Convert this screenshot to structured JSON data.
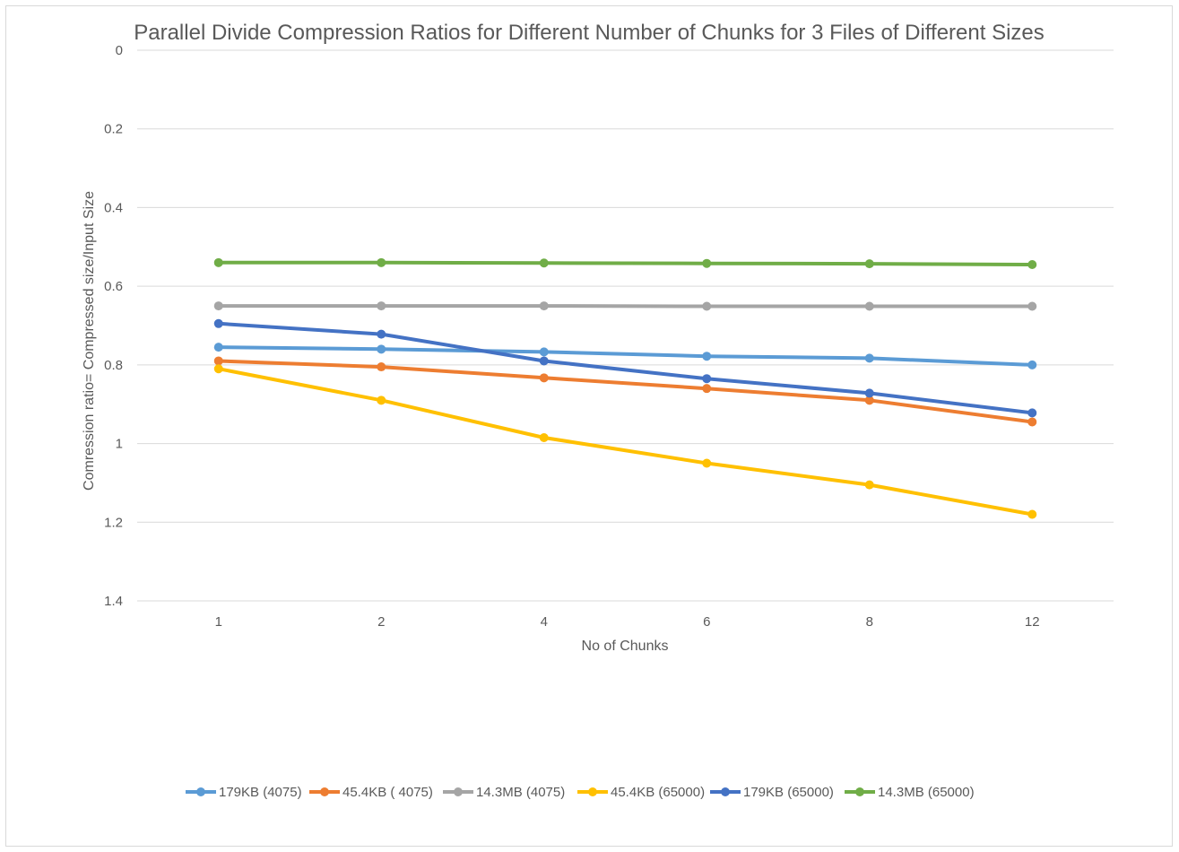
{
  "chart_data": {
    "type": "line",
    "title": "Parallel Divide Compression Ratios for Different Number of Chunks for 3 Files of Different Sizes",
    "xlabel": "No of Chunks",
    "ylabel": "Comression ratio= Compressed size/Input Size",
    "categories": [
      "1",
      "2",
      "4",
      "6",
      "8",
      "12"
    ],
    "y_ticks": [
      "0",
      "0.2",
      "0.4",
      "0.6",
      "0.8",
      "1",
      "1.2",
      "1.4"
    ],
    "ylim": [
      0,
      1.4
    ],
    "y_inverted": true,
    "grid": true,
    "legend_position": "bottom",
    "series": [
      {
        "name": "179KB (4075)",
        "color": "#5b9bd5",
        "values": [
          0.755,
          0.76,
          0.767,
          0.778,
          0.783,
          0.8
        ]
      },
      {
        "name": "45.4KB ( 4075)",
        "color": "#ed7d31",
        "values": [
          0.79,
          0.805,
          0.833,
          0.86,
          0.89,
          0.945
        ]
      },
      {
        "name": "14.3MB (4075)",
        "color": "#a5a5a5",
        "values": [
          0.65,
          0.65,
          0.65,
          0.651,
          0.651,
          0.651
        ]
      },
      {
        "name": "45.4KB (65000)",
        "color": "#ffc000",
        "values": [
          0.81,
          0.89,
          0.985,
          1.05,
          1.105,
          1.18
        ]
      },
      {
        "name": "179KB (65000)",
        "color": "#4472c4",
        "values": [
          0.695,
          0.722,
          0.79,
          0.835,
          0.872,
          0.922
        ]
      },
      {
        "name": "14.3MB (65000)",
        "color": "#70ad47",
        "values": [
          0.54,
          0.54,
          0.541,
          0.542,
          0.543,
          0.545
        ]
      }
    ]
  }
}
